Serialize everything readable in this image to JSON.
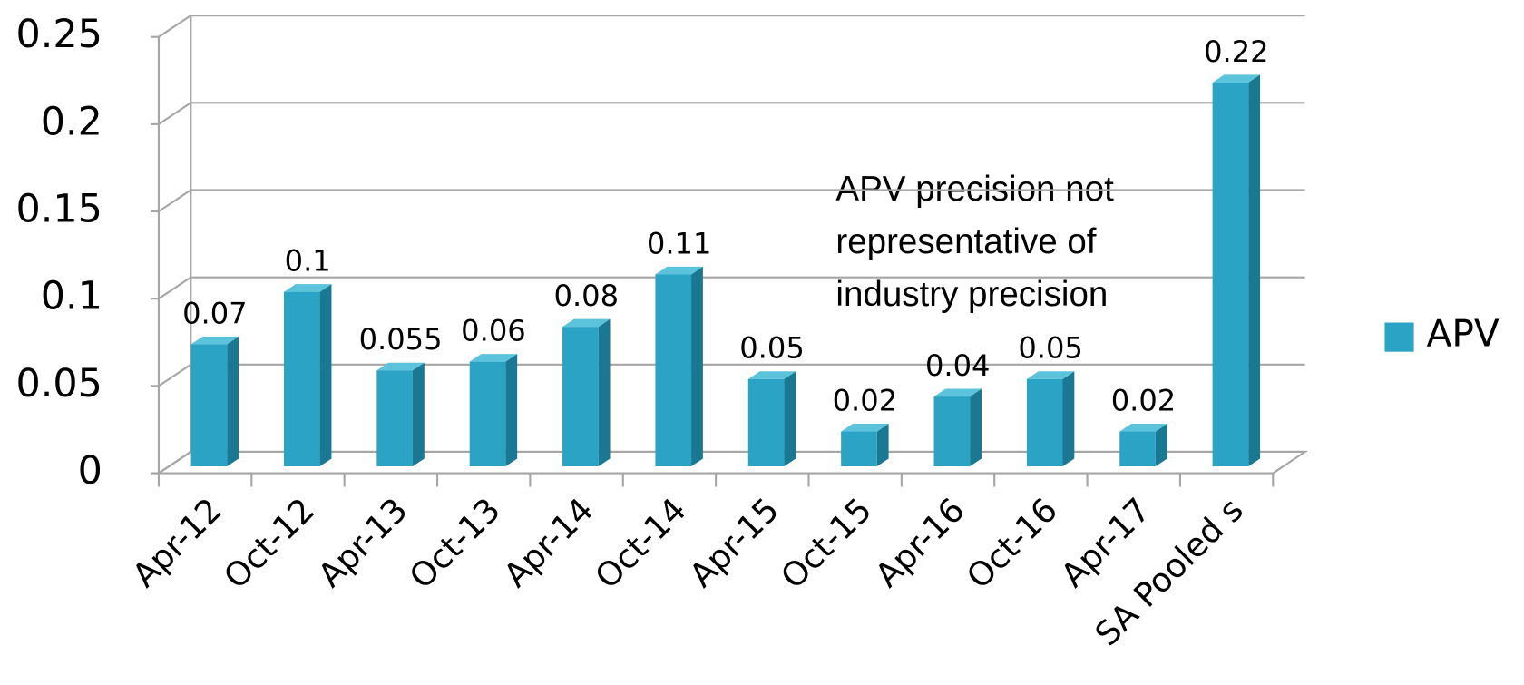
{
  "chart_data": {
    "type": "bar3d",
    "categories": [
      "Apr-12",
      "Oct-12",
      "Apr-13",
      "Oct-13",
      "Apr-14",
      "Oct-14",
      "Apr-15",
      "Oct-15",
      "Apr-16",
      "Oct-16",
      "Apr-17",
      "SA Pooled s"
    ],
    "series": [
      {
        "name": "APV",
        "color": "#2aa3c4",
        "values": [
          0.07,
          0.1,
          0.055,
          0.06,
          0.08,
          0.11,
          0.05,
          0.02,
          0.04,
          0.05,
          0.02,
          0.22
        ]
      }
    ],
    "ylim": [
      0,
      0.25
    ],
    "yticks": [
      0,
      0.05,
      0.1,
      0.15,
      0.2,
      0.25
    ],
    "grid": true,
    "legend": "right",
    "annotation": [
      "APV precision not",
      "representative of",
      "industry precision"
    ]
  }
}
